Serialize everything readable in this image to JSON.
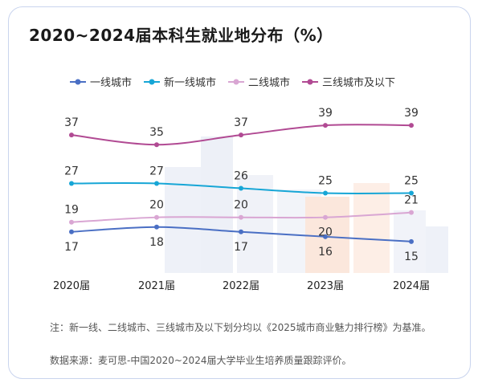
{
  "chart_data": {
    "type": "line",
    "title": "2020~2024届本科生就业地分布（%）",
    "categories": [
      "2020届",
      "2021届",
      "2022届",
      "2023届",
      "2024届"
    ],
    "ylim": [
      10,
      42
    ],
    "grid": false,
    "legend_position": "top",
    "series": [
      {
        "name": "一线城市",
        "color": "#4a6fc4",
        "values": [
          17,
          18,
          17,
          16,
          15
        ]
      },
      {
        "name": "新一线城市",
        "color": "#17a6d6",
        "values": [
          27,
          27,
          26,
          25,
          25
        ]
      },
      {
        "name": "二线城市",
        "color": "#d9a6d3",
        "values": [
          19,
          20,
          20,
          20,
          21
        ]
      },
      {
        "name": "三线城市及以下",
        "color": "#b14a93",
        "values": [
          37,
          35,
          37,
          39,
          39
        ]
      }
    ]
  },
  "note": "注：新一线、二线城市、三线城市及以下划分均以《2025城市商业魅力排行榜》为基准。",
  "source": "数据来源：麦可思-中国2020~2024届大学毕业生培养质量跟踪评价。"
}
